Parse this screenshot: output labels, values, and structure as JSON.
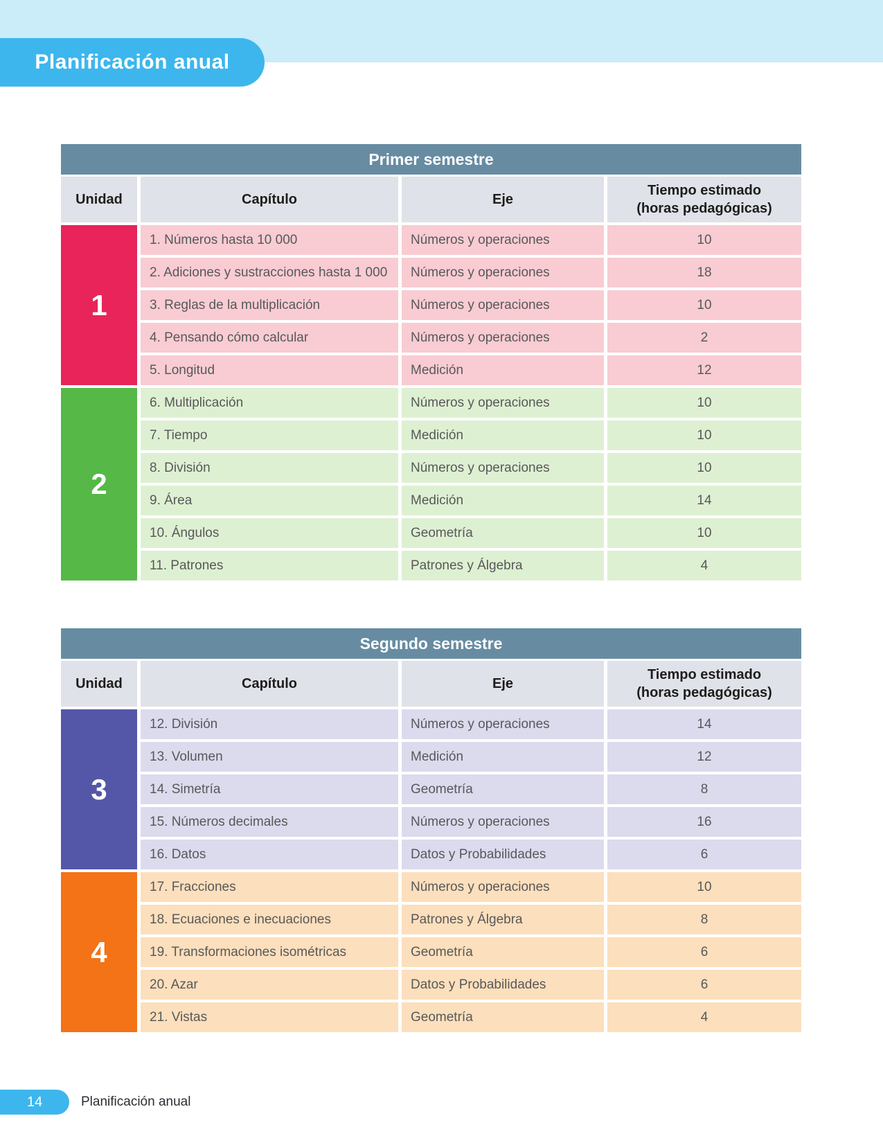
{
  "page": {
    "title": "Planificación anual",
    "footer": {
      "page_number": "14",
      "label": "Planificación anual"
    }
  },
  "colors": {
    "top_band": "#cbecf9",
    "title_pill": "#3db6ed",
    "table_header_band": "#678ca2",
    "column_header_bg": "#e0e2e9",
    "body_text": "#58585a"
  },
  "columns": {
    "unidad": "Unidad",
    "capitulo": "Capítulo",
    "eje": "Eje",
    "tiempo_line1": "Tiempo estimado",
    "tiempo_line2": "(horas pedagógicas)"
  },
  "tables": [
    {
      "title": "Primer semestre",
      "units": [
        {
          "number": "1",
          "color": "#e8245a",
          "row_color": "#f8ccd2",
          "rows": [
            {
              "chapter": "1. Números hasta 10 000",
              "eje": "Números y operaciones",
              "time": "10"
            },
            {
              "chapter": "2. Adiciones y sustracciones hasta 1 000",
              "eje": "Números y operaciones",
              "time": "18"
            },
            {
              "chapter": "3. Reglas de la multiplicación",
              "eje": "Números y operaciones",
              "time": "10"
            },
            {
              "chapter": "4. Pensando cómo calcular",
              "eje": "Números y operaciones",
              "time": "2"
            },
            {
              "chapter": "5. Longitud",
              "eje": "Medición",
              "time": "12"
            }
          ]
        },
        {
          "number": "2",
          "color": "#55b847",
          "row_color": "#def0d2",
          "rows": [
            {
              "chapter": "6. Multiplicación",
              "eje": "Números y operaciones",
              "time": "10"
            },
            {
              "chapter": "7. Tiempo",
              "eje": "Medición",
              "time": "10"
            },
            {
              "chapter": "8. División",
              "eje": "Números y operaciones",
              "time": "10"
            },
            {
              "chapter": "9. Área",
              "eje": "Medición",
              "time": "14"
            },
            {
              "chapter": "10. Ángulos",
              "eje": "Geometría",
              "time": "10"
            },
            {
              "chapter": "11. Patrones",
              "eje": "Patrones y Álgebra",
              "time": "4"
            }
          ]
        }
      ]
    },
    {
      "title": "Segundo semestre",
      "units": [
        {
          "number": "3",
          "color": "#5457a8",
          "row_color": "#dcdaed",
          "rows": [
            {
              "chapter": "12. División",
              "eje": "Números y operaciones",
              "time": "14"
            },
            {
              "chapter": "13. Volumen",
              "eje": "Medición",
              "time": "12"
            },
            {
              "chapter": "14. Simetría",
              "eje": "Geometría",
              "time": "8"
            },
            {
              "chapter": "15. Números decimales",
              "eje": "Números y operaciones",
              "time": "16"
            },
            {
              "chapter": "16. Datos",
              "eje": "Datos y Probabilidades",
              "time": "6"
            }
          ]
        },
        {
          "number": "4",
          "color": "#f37316",
          "row_color": "#fcdfbc",
          "rows": [
            {
              "chapter": "17. Fracciones",
              "eje": "Números y operaciones",
              "time": "10"
            },
            {
              "chapter": "18. Ecuaciones e inecuaciones",
              "eje": "Patrones y Álgebra",
              "time": "8"
            },
            {
              "chapter": "19. Transformaciones isométricas",
              "eje": "Geometría",
              "time": "6"
            },
            {
              "chapter": "20. Azar",
              "eje": "Datos y Probabilidades",
              "time": "6"
            },
            {
              "chapter": "21. Vistas",
              "eje": "Geometría",
              "time": "4"
            }
          ]
        }
      ]
    }
  ]
}
